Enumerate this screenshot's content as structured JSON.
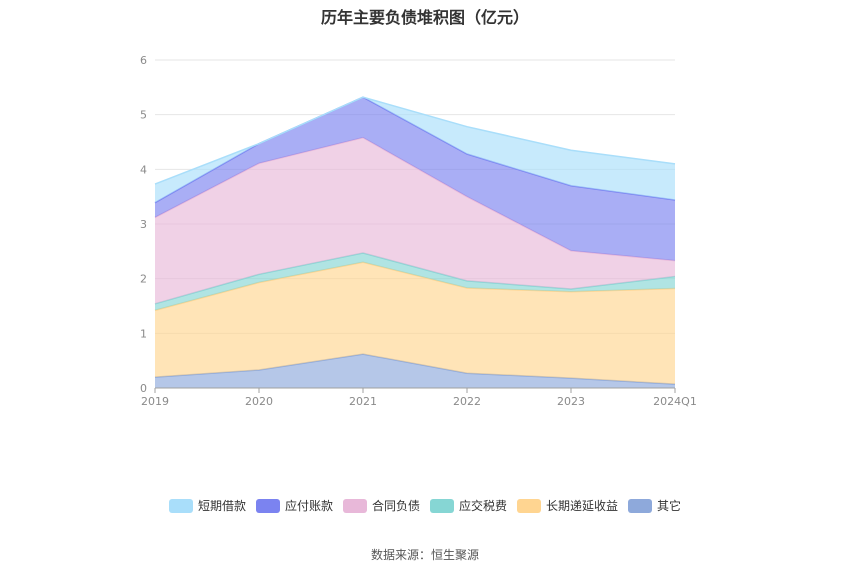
{
  "chart_data": {
    "type": "area",
    "stacked": true,
    "title": "历年主要负债堆积图（亿元）",
    "categories": [
      "2019",
      "2020",
      "2021",
      "2022",
      "2023",
      "2024Q1"
    ],
    "ylim": [
      0,
      6
    ],
    "yticks": [
      "0",
      "1",
      "2",
      "3",
      "4",
      "5",
      "6"
    ],
    "grid": true,
    "legend_position": "bottom",
    "series": [
      {
        "name": "其它",
        "color": "#8ea9db",
        "values": [
          0.2,
          0.33,
          0.62,
          0.27,
          0.18,
          0.07
        ]
      },
      {
        "name": "长期递延收益",
        "color": "#ffd591",
        "values": [
          1.22,
          1.6,
          1.68,
          1.56,
          1.58,
          1.75
        ]
      },
      {
        "name": "应交税费",
        "color": "#86d6d4",
        "values": [
          0.12,
          0.15,
          0.17,
          0.13,
          0.05,
          0.22
        ]
      },
      {
        "name": "合同负债",
        "color": "#e8b8d9",
        "values": [
          1.58,
          2.03,
          2.11,
          1.54,
          0.7,
          0.29
        ]
      },
      {
        "name": "应付账款",
        "color": "#7b83f0",
        "values": [
          0.27,
          0.36,
          0.74,
          0.78,
          1.19,
          1.11
        ]
      },
      {
        "name": "短期借款",
        "color": "#a9defa",
        "values": [
          0.34,
          0.0,
          0.0,
          0.5,
          0.65,
          0.66
        ]
      }
    ],
    "legend_order": [
      "短期借款",
      "应付账款",
      "合同负债",
      "应交税费",
      "长期递延收益",
      "其它"
    ]
  },
  "source": "数据来源：恒生聚源"
}
